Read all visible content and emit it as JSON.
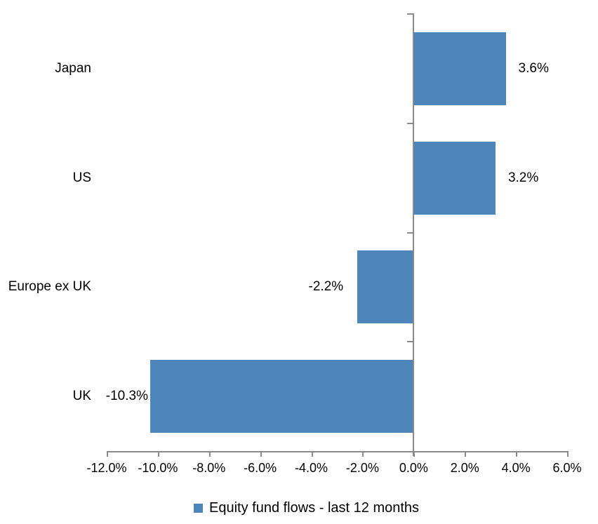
{
  "chart_data": {
    "type": "bar",
    "orientation": "horizontal",
    "title": "",
    "categories": [
      "Japan",
      "US",
      "Europe ex UK",
      "UK"
    ],
    "values": [
      3.6,
      3.2,
      -2.2,
      -10.3
    ],
    "data_labels": [
      "3.6%",
      "3.2%",
      "-2.2%",
      "-10.3%"
    ],
    "series_name": "Equity fund flows - last 12 months",
    "x_ticks": [
      "-12.0%",
      "-10.0%",
      "-8.0%",
      "-6.0%",
      "-4.0%",
      "-2.0%",
      "0.0%",
      "2.0%",
      "4.0%",
      "6.0%"
    ],
    "x_tick_values": [
      -12,
      -10,
      -8,
      -6,
      -4,
      -2,
      0,
      2,
      4,
      6
    ],
    "xlim": [
      -12,
      6
    ],
    "grid": false,
    "legend_position": "bottom",
    "colors": {
      "bar": "#4E86BC",
      "axis": "#8A8A8A",
      "text": "#000000",
      "background": "#FFFFFF"
    }
  },
  "legend": {
    "label": "Equity fund flows - last 12 months",
    "marker_color": "#4E86BC"
  }
}
